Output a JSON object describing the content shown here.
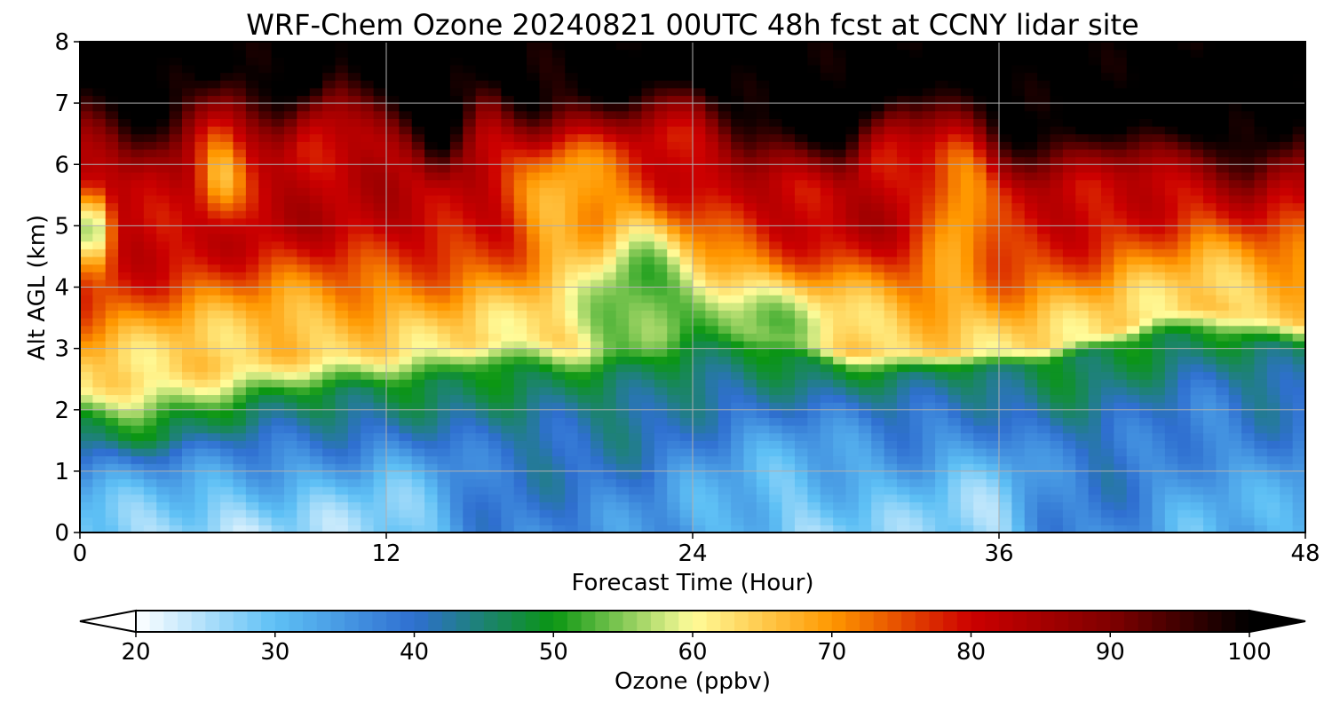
{
  "chart_data": {
    "type": "heatmap",
    "title": "WRF-Chem Ozone  20240821 00UTC 48h fcst at CCNY lidar site",
    "xlabel": "Forecast Time (Hour)",
    "ylabel": "Alt AGL (km)",
    "xlim": [
      0,
      48
    ],
    "ylim": [
      0,
      8
    ],
    "xticks": [
      "0",
      "12",
      "24",
      "36",
      "48"
    ],
    "yticks": [
      "0",
      "1",
      "2",
      "3",
      "4",
      "5",
      "6",
      "7",
      "8"
    ],
    "grid": true,
    "colorbar": {
      "label": "Ozone  (ppbv)",
      "range": [
        20,
        100
      ],
      "ticks": [
        "20",
        "30",
        "40",
        "50",
        "60",
        "70",
        "80",
        "90",
        "100"
      ],
      "extend": "both",
      "colormap": [
        {
          "v": 20,
          "c": "#ffffff"
        },
        {
          "v": 30,
          "c": "#5ec0f5"
        },
        {
          "v": 40,
          "c": "#2f6fd0"
        },
        {
          "v": 50,
          "c": "#0a9612"
        },
        {
          "v": 60,
          "c": "#fffc9a"
        },
        {
          "v": 70,
          "c": "#ff9800"
        },
        {
          "v": 80,
          "c": "#cc0000"
        },
        {
          "v": 90,
          "c": "#800000"
        },
        {
          "v": 100,
          "c": "#000000"
        }
      ]
    },
    "hours": [
      0,
      2,
      4,
      6,
      8,
      10,
      12,
      14,
      16,
      18,
      20,
      22,
      24,
      26,
      28,
      30,
      32,
      34,
      36,
      38,
      40,
      42,
      44,
      46,
      48
    ],
    "boundary_layer_top_km": [
      1.7,
      1.5,
      1.6,
      1.8,
      2.0,
      2.1,
      2.2,
      2.3,
      2.6,
      2.5,
      2.5,
      2.6,
      3.0,
      3.0,
      2.8,
      2.6,
      2.5,
      2.6,
      2.6,
      2.7,
      2.9,
      3.1,
      3.2,
      3.0,
      2.9
    ],
    "free_troposphere_base_km": [
      2.4,
      2.6,
      2.8,
      2.9,
      3.0,
      3.0,
      3.0,
      3.1,
      3.2,
      3.3,
      3.1,
      3.2,
      3.6,
      3.4,
      3.2,
      3.0,
      3.0,
      3.0,
      3.0,
      3.1,
      3.3,
      3.6,
      3.8,
      3.6,
      3.5
    ],
    "high_ozone_top_km": [
      7.3,
      6.6,
      7.1,
      7.7,
      7.0,
      7.9,
      7.1,
      6.4,
      7.5,
      6.9,
      7.1,
      7.3,
      7.6,
      6.8,
      6.7,
      6.5,
      7.5,
      7.0,
      6.5,
      6.6,
      6.8,
      6.7,
      6.6,
      6.2,
      6.9
    ],
    "surface_minimum_ppbv": [
      28,
      26,
      25,
      25,
      27,
      27,
      26,
      30,
      38,
      38,
      37,
      36,
      33,
      30,
      27,
      28,
      29,
      27,
      26,
      36,
      38,
      35,
      31,
      33,
      31
    ],
    "features": [
      {
        "hour_range": [
          0,
          1
        ],
        "altitude_range_km": [
          4.3,
          5.7
        ],
        "ozone_ppbv": 52
      },
      {
        "hour_range": [
          19.5,
          24
        ],
        "altitude_range_km": [
          2.3,
          5.5
        ],
        "ozone_ppbv": 48
      },
      {
        "hour_range": [
          20,
          30
        ],
        "altitude_range_km": [
          2.7,
          4.2
        ],
        "ozone_ppbv": 52
      },
      {
        "hour_range": [
          33,
          36
        ],
        "altitude_range_km": [
          4.0,
          6.7
        ],
        "ozone_ppbv": 64
      },
      {
        "hour_range": [
          4.5,
          6.5
        ],
        "altitude_range_km": [
          5.0,
          6.7
        ],
        "ozone_ppbv": 66
      },
      {
        "hour_range": [
          17,
          21
        ],
        "altitude_range_km": [
          4.0,
          6.7
        ],
        "ozone_ppbv": 63
      }
    ]
  }
}
